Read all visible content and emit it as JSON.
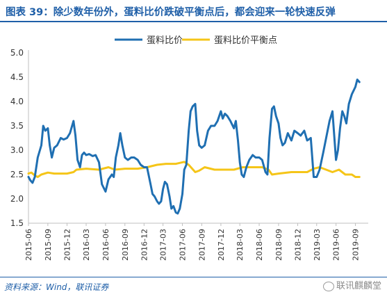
{
  "header": {
    "title": "图表 39：除少数年份外，蛋料比价跌破平衡点后，都会迎来一轮快速反弹"
  },
  "footer": {
    "source": "资料来源：Wind，联讯证券",
    "watermark": "联讯麒麟堂"
  },
  "colors": {
    "price_ratio": "#1f6fb2",
    "breakeven": "#f5c518",
    "title": "#1f5fa8"
  },
  "chart_data": {
    "type": "line",
    "title": "",
    "xlabel": "",
    "ylabel": "",
    "ylim": [
      1.5,
      5.0
    ],
    "yticks": [
      "1.5",
      "2.0",
      "2.5",
      "3.0",
      "3.5",
      "4.0",
      "4.5",
      "5.0"
    ],
    "xlim": [
      "2015-06",
      "2019-11"
    ],
    "xticks": [
      "2015-06",
      "2015-09",
      "2015-12",
      "2016-03",
      "2016-06",
      "2016-09",
      "2016-12",
      "2017-03",
      "2017-06",
      "2017-09",
      "2017-12",
      "2018-03",
      "2018-06",
      "2018-09",
      "2018-12",
      "2019-03",
      "2019-06",
      "2019-09"
    ],
    "grid": false,
    "legend": "top-center",
    "series": [
      {
        "name": "蛋料比价",
        "color": "#1f6fb2",
        "points": [
          [
            "2015-06-01",
            2.45
          ],
          [
            "2015-06-10",
            2.38
          ],
          [
            "2015-06-20",
            2.33
          ],
          [
            "2015-07-01",
            2.45
          ],
          [
            "2015-07-15",
            2.85
          ],
          [
            "2015-08-01",
            3.1
          ],
          [
            "2015-08-10",
            3.5
          ],
          [
            "2015-08-20",
            3.4
          ],
          [
            "2015-09-01",
            3.45
          ],
          [
            "2015-09-10",
            3.1
          ],
          [
            "2015-09-20",
            2.85
          ],
          [
            "2015-10-01",
            3.05
          ],
          [
            "2015-10-15",
            3.1
          ],
          [
            "2015-11-01",
            3.25
          ],
          [
            "2015-11-15",
            3.22
          ],
          [
            "2015-12-01",
            3.25
          ],
          [
            "2015-12-15",
            3.35
          ],
          [
            "2016-01-01",
            3.6
          ],
          [
            "2016-01-10",
            3.3
          ],
          [
            "2016-01-20",
            2.8
          ],
          [
            "2016-02-01",
            2.65
          ],
          [
            "2016-02-10",
            2.9
          ],
          [
            "2016-02-20",
            2.95
          ],
          [
            "2016-03-01",
            2.9
          ],
          [
            "2016-03-15",
            2.92
          ],
          [
            "2016-04-01",
            2.88
          ],
          [
            "2016-04-15",
            2.9
          ],
          [
            "2016-05-01",
            2.75
          ],
          [
            "2016-05-15",
            2.3
          ],
          [
            "2016-06-01",
            2.15
          ],
          [
            "2016-06-15",
            2.4
          ],
          [
            "2016-07-01",
            2.5
          ],
          [
            "2016-07-10",
            2.45
          ],
          [
            "2016-07-20",
            2.85
          ],
          [
            "2016-08-01",
            3.1
          ],
          [
            "2016-08-10",
            3.35
          ],
          [
            "2016-08-20",
            3.1
          ],
          [
            "2016-09-01",
            2.85
          ],
          [
            "2016-09-15",
            2.8
          ],
          [
            "2016-10-01",
            2.85
          ],
          [
            "2016-10-15",
            2.85
          ],
          [
            "2016-11-01",
            2.8
          ],
          [
            "2016-11-15",
            2.7
          ],
          [
            "2016-12-01",
            2.65
          ],
          [
            "2016-12-15",
            2.65
          ],
          [
            "2017-01-01",
            2.3
          ],
          [
            "2017-01-10",
            2.1
          ],
          [
            "2017-01-20",
            2.05
          ],
          [
            "2017-02-01",
            1.95
          ],
          [
            "2017-02-10",
            1.9
          ],
          [
            "2017-02-20",
            1.95
          ],
          [
            "2017-03-01",
            2.2
          ],
          [
            "2017-03-10",
            2.35
          ],
          [
            "2017-03-20",
            2.3
          ],
          [
            "2017-04-01",
            2.05
          ],
          [
            "2017-04-10",
            1.8
          ],
          [
            "2017-04-20",
            1.85
          ],
          [
            "2017-05-01",
            1.72
          ],
          [
            "2017-05-10",
            1.7
          ],
          [
            "2017-05-20",
            1.8
          ],
          [
            "2017-06-01",
            2.1
          ],
          [
            "2017-06-10",
            2.6
          ],
          [
            "2017-06-20",
            2.7
          ],
          [
            "2017-07-01",
            3.4
          ],
          [
            "2017-07-10",
            3.8
          ],
          [
            "2017-07-20",
            3.9
          ],
          [
            "2017-08-01",
            3.95
          ],
          [
            "2017-08-10",
            3.4
          ],
          [
            "2017-08-20",
            3.1
          ],
          [
            "2017-09-01",
            3.05
          ],
          [
            "2017-09-15",
            3.1
          ],
          [
            "2017-10-01",
            3.4
          ],
          [
            "2017-10-15",
            3.5
          ],
          [
            "2017-11-01",
            3.5
          ],
          [
            "2017-11-15",
            3.6
          ],
          [
            "2017-12-01",
            3.8
          ],
          [
            "2017-12-10",
            3.65
          ],
          [
            "2017-12-20",
            3.75
          ],
          [
            "2018-01-01",
            3.7
          ],
          [
            "2018-01-15",
            3.6
          ],
          [
            "2018-02-01",
            3.45
          ],
          [
            "2018-02-10",
            3.6
          ],
          [
            "2018-02-20",
            3.2
          ],
          [
            "2018-03-01",
            2.75
          ],
          [
            "2018-03-10",
            2.5
          ],
          [
            "2018-03-20",
            2.45
          ],
          [
            "2018-04-01",
            2.65
          ],
          [
            "2018-04-15",
            2.8
          ],
          [
            "2018-05-01",
            2.9
          ],
          [
            "2018-05-15",
            2.85
          ],
          [
            "2018-06-01",
            2.85
          ],
          [
            "2018-06-15",
            2.8
          ],
          [
            "2018-07-01",
            2.55
          ],
          [
            "2018-07-10",
            2.5
          ],
          [
            "2018-07-20",
            3.25
          ],
          [
            "2018-08-01",
            3.85
          ],
          [
            "2018-08-10",
            3.9
          ],
          [
            "2018-08-20",
            3.7
          ],
          [
            "2018-09-01",
            3.55
          ],
          [
            "2018-09-10",
            3.25
          ],
          [
            "2018-09-20",
            3.1
          ],
          [
            "2018-10-01",
            3.15
          ],
          [
            "2018-10-15",
            3.35
          ],
          [
            "2018-11-01",
            3.2
          ],
          [
            "2018-11-15",
            3.4
          ],
          [
            "2018-12-01",
            3.35
          ],
          [
            "2018-12-15",
            3.3
          ],
          [
            "2019-01-01",
            3.4
          ],
          [
            "2019-01-15",
            3.2
          ],
          [
            "2019-02-01",
            3.25
          ],
          [
            "2019-02-15",
            2.45
          ],
          [
            "2019-03-01",
            2.45
          ],
          [
            "2019-03-15",
            2.6
          ],
          [
            "2019-04-01",
            2.95
          ],
          [
            "2019-04-15",
            3.25
          ],
          [
            "2019-05-01",
            3.6
          ],
          [
            "2019-05-15",
            3.8
          ],
          [
            "2019-06-01",
            2.8
          ],
          [
            "2019-06-10",
            3.0
          ],
          [
            "2019-06-20",
            3.45
          ],
          [
            "2019-07-01",
            3.8
          ],
          [
            "2019-07-10",
            3.7
          ],
          [
            "2019-07-20",
            3.55
          ],
          [
            "2019-08-01",
            3.95
          ],
          [
            "2019-08-15",
            4.15
          ],
          [
            "2019-09-01",
            4.3
          ],
          [
            "2019-09-10",
            4.45
          ],
          [
            "2019-09-20",
            4.4
          ]
        ]
      },
      {
        "name": "蛋料比价平衡点",
        "color": "#f5c518",
        "points": [
          [
            "2015-06-01",
            2.52
          ],
          [
            "2015-06-15",
            2.54
          ],
          [
            "2015-07-01",
            2.48
          ],
          [
            "2015-07-15",
            2.45
          ],
          [
            "2015-08-01",
            2.5
          ],
          [
            "2015-09-01",
            2.54
          ],
          [
            "2015-10-01",
            2.52
          ],
          [
            "2015-11-01",
            2.52
          ],
          [
            "2015-12-01",
            2.52
          ],
          [
            "2016-01-01",
            2.55
          ],
          [
            "2016-01-15",
            2.6
          ],
          [
            "2016-03-01",
            2.62
          ],
          [
            "2016-05-01",
            2.6
          ],
          [
            "2016-06-15",
            2.65
          ],
          [
            "2016-07-15",
            2.6
          ],
          [
            "2016-09-01",
            2.62
          ],
          [
            "2016-11-01",
            2.62
          ],
          [
            "2016-12-15",
            2.65
          ],
          [
            "2017-02-01",
            2.7
          ],
          [
            "2017-03-15",
            2.72
          ],
          [
            "2017-05-01",
            2.72
          ],
          [
            "2017-06-10",
            2.76
          ],
          [
            "2017-07-01",
            2.7
          ],
          [
            "2017-08-01",
            2.55
          ],
          [
            "2017-08-20",
            2.58
          ],
          [
            "2017-09-15",
            2.65
          ],
          [
            "2017-11-01",
            2.6
          ],
          [
            "2017-12-15",
            2.6
          ],
          [
            "2018-02-01",
            2.6
          ],
          [
            "2018-03-15",
            2.65
          ],
          [
            "2018-05-01",
            2.65
          ],
          [
            "2018-06-15",
            2.65
          ],
          [
            "2018-07-15",
            2.6
          ],
          [
            "2018-08-01",
            2.5
          ],
          [
            "2018-09-01",
            2.52
          ],
          [
            "2018-11-01",
            2.55
          ],
          [
            "2018-12-15",
            2.55
          ],
          [
            "2019-01-15",
            2.55
          ],
          [
            "2019-02-15",
            2.62
          ],
          [
            "2019-03-15",
            2.65
          ],
          [
            "2019-04-15",
            2.6
          ],
          [
            "2019-05-15",
            2.55
          ],
          [
            "2019-06-15",
            2.6
          ],
          [
            "2019-07-15",
            2.5
          ],
          [
            "2019-08-15",
            2.5
          ],
          [
            "2019-09-01",
            2.45
          ],
          [
            "2019-09-20",
            2.45
          ]
        ]
      }
    ]
  }
}
